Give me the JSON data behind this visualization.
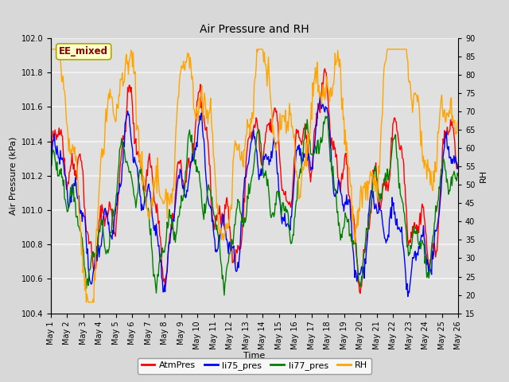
{
  "title": "Air Pressure and RH",
  "xlabel": "Time",
  "ylabel_left": "Air Pressure (kPa)",
  "ylabel_right": "RH",
  "ylim_left": [
    100.4,
    102.0
  ],
  "ylim_right": [
    15,
    90
  ],
  "yticks_left": [
    100.4,
    100.6,
    100.8,
    101.0,
    101.2,
    101.4,
    101.6,
    101.8,
    102.0
  ],
  "yticks_right": [
    15,
    20,
    25,
    30,
    35,
    40,
    45,
    50,
    55,
    60,
    65,
    70,
    75,
    80,
    85,
    90
  ],
  "annotation_text": "EE_mixed",
  "annotation_bg": "#ffffcc",
  "annotation_border": "#aaa800",
  "annotation_text_color": "#880000",
  "legend_entries": [
    "AtmPres",
    "li75_pres",
    "li77_pres",
    "RH"
  ],
  "colors": [
    "red",
    "blue",
    "green",
    "orange"
  ],
  "fig_bg_color": "#d8d8d8",
  "plot_bg_color": "#e0e0e0",
  "grid_color": "#f5f5f5",
  "line_width": 1.0,
  "title_fontsize": 10,
  "label_fontsize": 8,
  "tick_fontsize": 7,
  "legend_fontsize": 8
}
